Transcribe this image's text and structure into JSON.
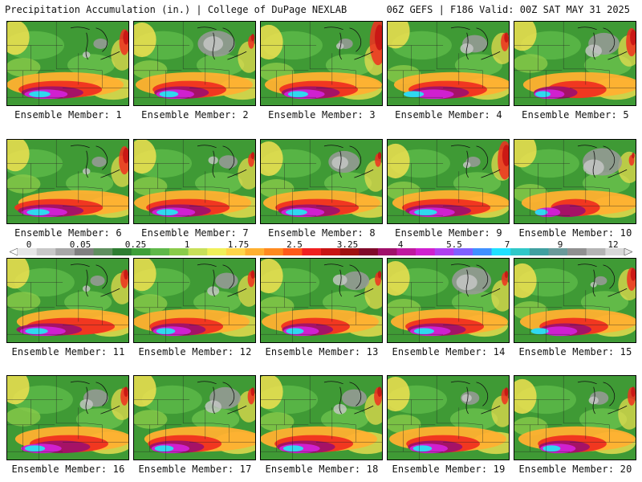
{
  "header": {
    "title": "Precipitation Accumulation (in.) | College of DuPage NEXLAB",
    "run_info": "06Z GEFS | F186 Valid: 00Z SAT MAY 31 2025"
  },
  "caption_prefix": "Ensemble Member: ",
  "members": [
    {
      "label": "Ensemble Member: 1",
      "heavy": 0.85,
      "northeast": 0.45,
      "lakes_gray": 0.2
    },
    {
      "label": "Ensemble Member: 2",
      "heavy": 0.75,
      "northeast": 0.2,
      "lakes_gray": 0.75
    },
    {
      "label": "Ensemble Member: 3",
      "heavy": 0.8,
      "northeast": 0.85,
      "lakes_gray": 0.2
    },
    {
      "label": "Ensemble Member: 4",
      "heavy": 0.8,
      "northeast": 0.3,
      "lakes_gray": 0.45
    },
    {
      "label": "Ensemble Member: 5",
      "heavy": 0.6,
      "northeast": 0.5,
      "lakes_gray": 0.6
    },
    {
      "label": "Ensemble Member: 6",
      "heavy": 0.9,
      "northeast": 0.5,
      "lakes_gray": 0.2
    },
    {
      "label": "Ensemble Member: 7",
      "heavy": 0.85,
      "northeast": 0.2,
      "lakes_gray": 0.3
    },
    {
      "label": "Ensemble Member: 8",
      "heavy": 0.85,
      "northeast": 0.2,
      "lakes_gray": 0.6
    },
    {
      "label": "Ensemble Member: 9",
      "heavy": 0.9,
      "northeast": 0.7,
      "lakes_gray": 0.2
    },
    {
      "label": "Ensemble Member: 10",
      "heavy": 0.5,
      "northeast": 0.15,
      "lakes_gray": 0.8
    },
    {
      "label": "Ensemble Member: 11",
      "heavy": 0.9,
      "northeast": 0.3,
      "lakes_gray": 0.2
    },
    {
      "label": "Ensemble Member: 12",
      "heavy": 0.75,
      "northeast": 0.25,
      "lakes_gray": 0.4
    },
    {
      "label": "Ensemble Member: 13",
      "heavy": 0.7,
      "northeast": 0.2,
      "lakes_gray": 0.5
    },
    {
      "label": "Ensemble Member: 14",
      "heavy": 0.8,
      "northeast": 0.2,
      "lakes_gray": 0.8
    },
    {
      "label": "Ensemble Member: 15",
      "heavy": 0.7,
      "northeast": 0.4,
      "lakes_gray": 0.15
    },
    {
      "label": "Ensemble Member: 16",
      "heavy": 0.8,
      "northeast": 0.3,
      "lakes_gray": 0.45
    },
    {
      "label": "Ensemble Member: 17",
      "heavy": 0.75,
      "northeast": 0.25,
      "lakes_gray": 0.6
    },
    {
      "label": "Ensemble Member: 18",
      "heavy": 0.8,
      "northeast": 0.3,
      "lakes_gray": 0.45
    },
    {
      "label": "Ensemble Member: 19",
      "heavy": 0.75,
      "northeast": 0.25,
      "lakes_gray": 0.3
    },
    {
      "label": "Ensemble Member: 20",
      "heavy": 0.7,
      "northeast": 0.3,
      "lakes_gray": 0.3
    }
  ],
  "color_scale": {
    "labels": [
      "0",
      "0.05",
      "0.25",
      "1",
      "1.75",
      "2.5",
      "3.25",
      "4",
      "5.5",
      "7",
      "9",
      "12"
    ],
    "colors": [
      "#e6e6e6",
      "#c8c8c8",
      "#a8a8a8",
      "#808080",
      "#5f8f5f",
      "#2e7d32",
      "#3f9f3a",
      "#5fb84a",
      "#8acb4a",
      "#c8e05a",
      "#f0f05a",
      "#ffd54a",
      "#ffb030",
      "#ff8a20",
      "#ff5a1a",
      "#f02020",
      "#c81414",
      "#a01010",
      "#800a2a",
      "#a0106a",
      "#c018a0",
      "#d020d0",
      "#b040f0",
      "#8060ff",
      "#4090ff",
      "#20e0ff",
      "#30c8c8",
      "#40a0a0",
      "#6a9a9a",
      "#909090",
      "#b4b4b4",
      "#d8d8d8"
    ]
  }
}
